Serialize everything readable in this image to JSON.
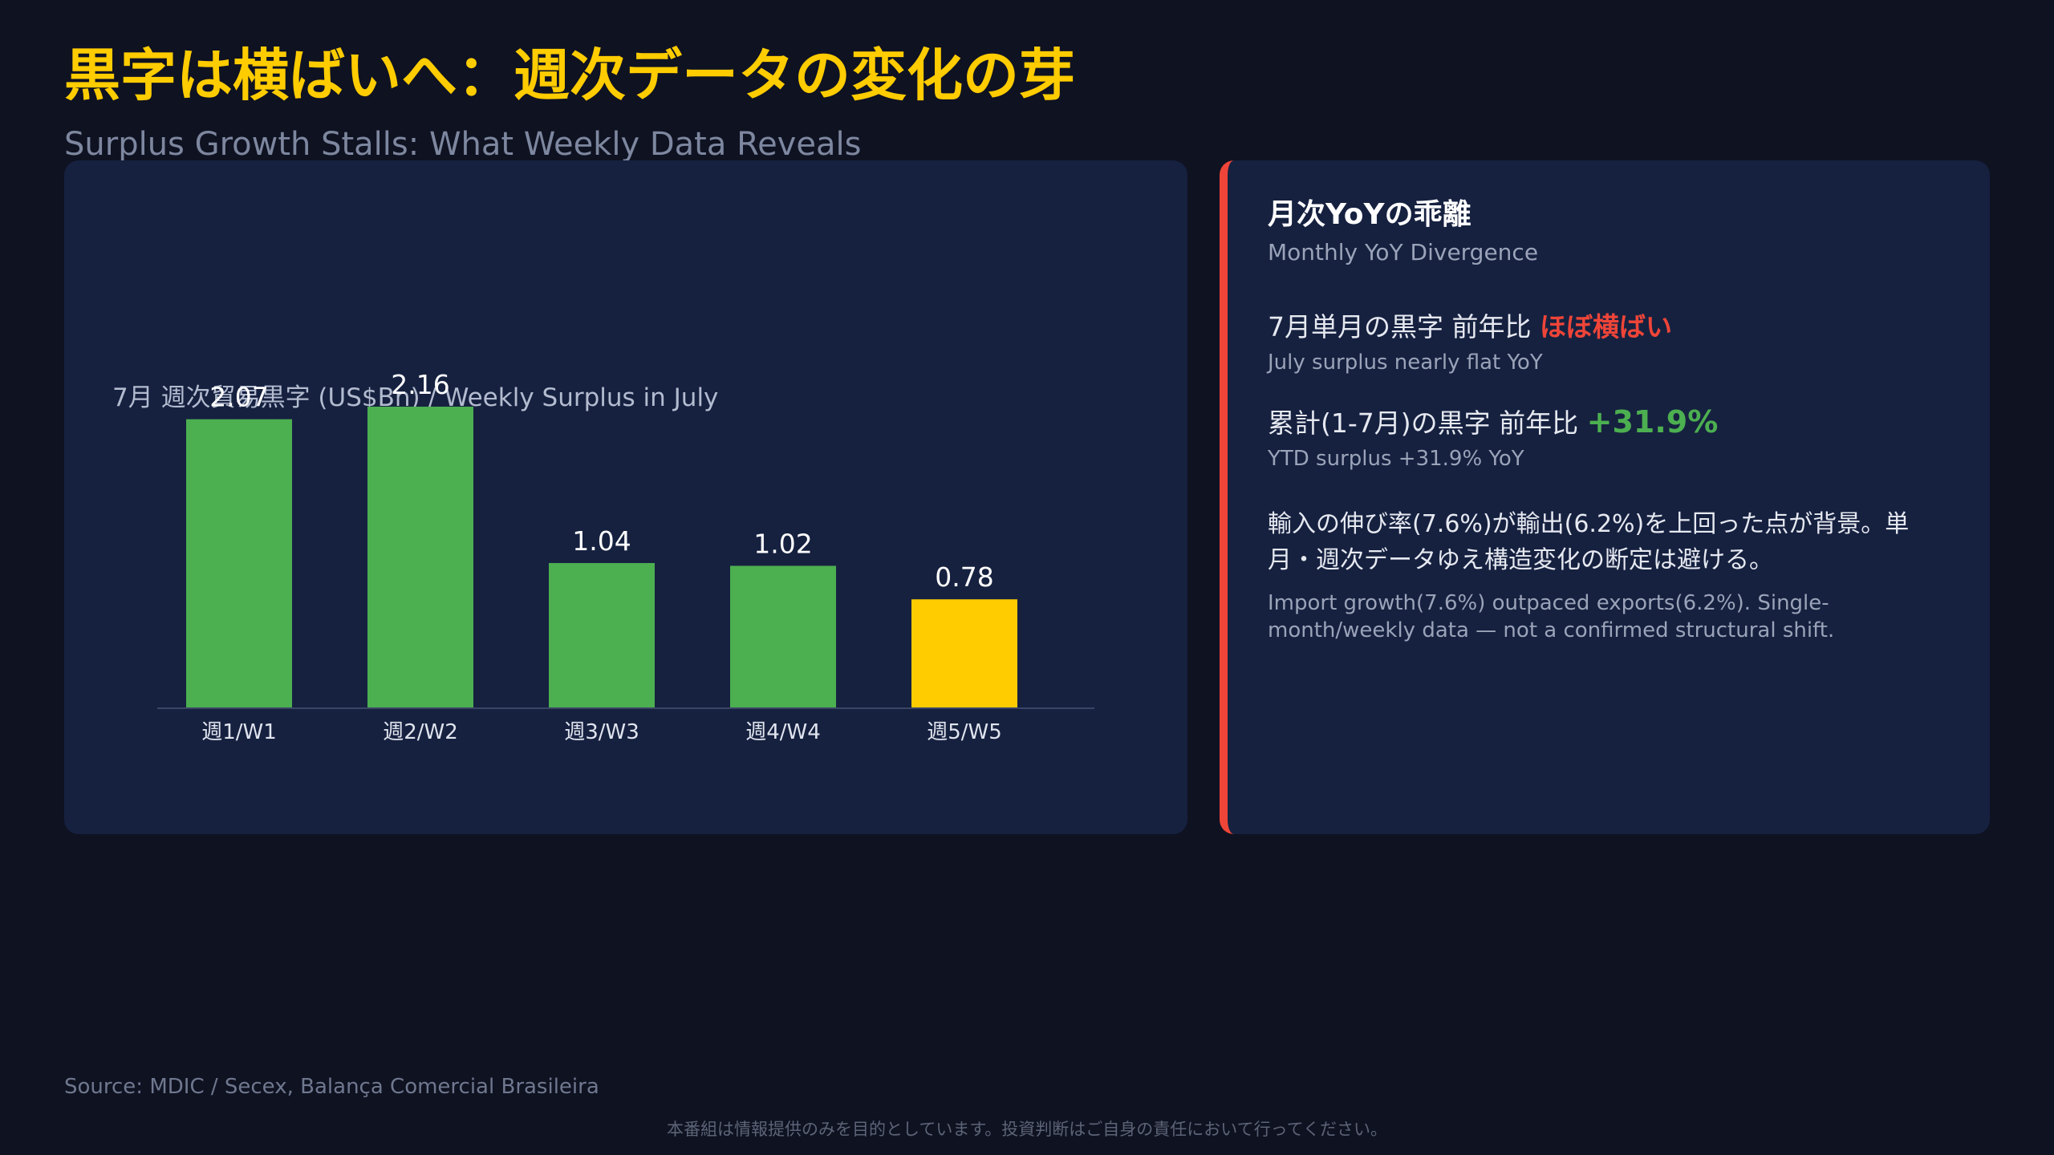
{
  "header": {
    "title": "黒字は横ばいへ：週次データの変化の芽",
    "subtitle": "Surplus Growth Stalls: What Weekly Data Reveals"
  },
  "chart_data": {
    "type": "bar",
    "title": "7月 週次貿易黒字 (US$Bn) / Weekly Surplus in July",
    "categories": [
      "週1/W1",
      "週2/W2",
      "週3/W3",
      "週4/W4",
      "週5/W5"
    ],
    "values": [
      2.07,
      2.16,
      1.04,
      1.02,
      0.78
    ],
    "value_labels": [
      "2.07",
      "2.16",
      "1.04",
      "1.02",
      "0.78"
    ],
    "ylim": [
      0,
      2.16
    ],
    "grid": false,
    "colors": [
      "#4caf50",
      "#4caf50",
      "#4caf50",
      "#4caf50",
      "#ffcc00"
    ]
  },
  "info_panel": {
    "heading": "月次YoYの乖離",
    "subheading": "Monthly YoY Divergence",
    "metric1": {
      "label": "7月単月の黒字 前年比",
      "value": "ほぼ横ばい",
      "sub": "July surplus nearly flat YoY"
    },
    "metric2": {
      "label": "累計(1-7月)の黒字 前年比",
      "value": "+31.9%",
      "sub": "YTD surplus +31.9% YoY"
    },
    "note_ja": "輸入の伸び率(7.6%)が輸出(6.2%)を上回った点が背景。単月・週次データゆえ構造変化の断定は避ける。",
    "note_en": "Import growth(7.6%) outpaced exports(6.2%). Single-month/weekly data — not a confirmed structural shift.",
    "accent_color": "#ef4538"
  },
  "footer": {
    "source": "Source: MDIC / Secex, Balança Comercial Brasileira",
    "disclaimer": "本番組は情報提供のみを目的としています。投資判断はご自身の責任において行ってください。"
  }
}
